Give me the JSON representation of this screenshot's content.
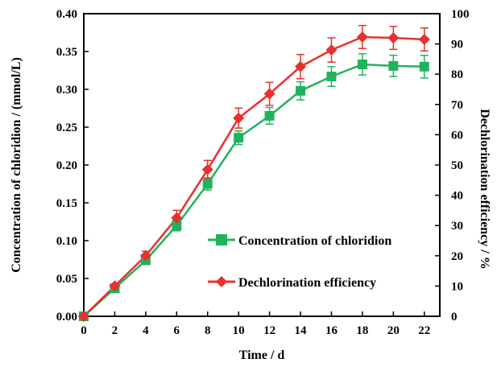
{
  "chart_data": {
    "type": "line",
    "xlabel": "Time / d",
    "ylabel_left": "Concentration of chloridion / (mmol/L)",
    "ylabel_right": "Dechlorination efficiency / %",
    "x": [
      0,
      2,
      4,
      6,
      8,
      10,
      12,
      14,
      16,
      18,
      20,
      22
    ],
    "x_ticks": [
      "0",
      "2",
      "4",
      "6",
      "8",
      "10",
      "12",
      "14",
      "16",
      "18",
      "20",
      "22"
    ],
    "xlim": [
      0,
      23
    ],
    "ylim_left": [
      0,
      0.4
    ],
    "ylim_right": [
      0,
      100
    ],
    "y_left_ticks": [
      "0.00",
      "0.05",
      "0.10",
      "0.15",
      "0.20",
      "0.25",
      "0.30",
      "0.35",
      "0.40"
    ],
    "y_right_ticks": [
      "0",
      "10",
      "20",
      "30",
      "40",
      "50",
      "60",
      "70",
      "80",
      "90",
      "100"
    ],
    "grid": false,
    "legend_position": "lower-right",
    "series": [
      {
        "name": "Concentration of chloridion",
        "axis": "left",
        "color": "#21b35b",
        "marker": "square",
        "values": [
          0.0,
          0.037,
          0.074,
          0.12,
          0.175,
          0.236,
          0.265,
          0.298,
          0.317,
          0.333,
          0.331,
          0.33
        ],
        "errors": [
          0.0,
          0.003,
          0.004,
          0.007,
          0.008,
          0.009,
          0.011,
          0.012,
          0.013,
          0.014,
          0.014,
          0.015
        ]
      },
      {
        "name": "Dechlorination efficiency",
        "axis": "right",
        "color": "#e8302e",
        "marker": "diamond",
        "values": [
          0.0,
          10.0,
          20.0,
          32.5,
          48.5,
          65.5,
          73.5,
          82.5,
          88.0,
          92.3,
          92.0,
          91.5
        ],
        "errors": [
          0.0,
          0.6,
          1.5,
          2.5,
          3.0,
          3.3,
          3.8,
          4.0,
          4.0,
          3.8,
          3.8,
          3.8
        ]
      }
    ]
  }
}
